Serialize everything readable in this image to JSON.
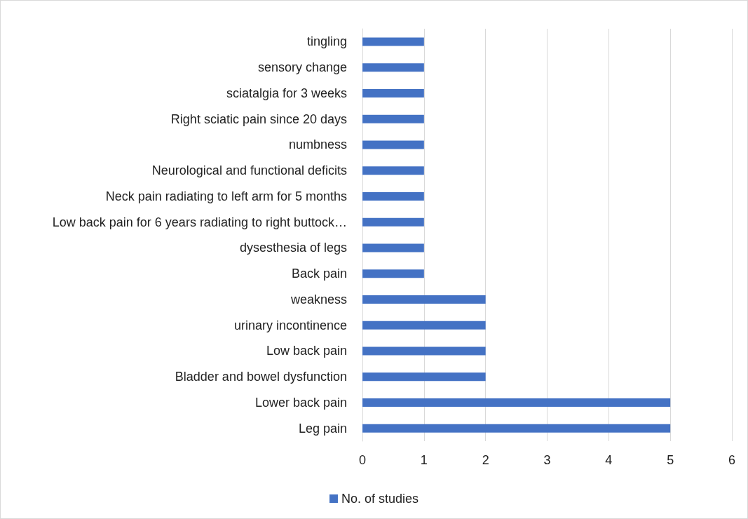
{
  "chart_data": {
    "type": "bar",
    "orientation": "horizontal",
    "categories": [
      "tingling",
      "sensory change",
      "sciatalgia for 3 weeks",
      "Right sciatic pain since 20 days",
      "numbness",
      "Neurological and functional deficits",
      "Neck pain radiating to left arm for 5 months",
      "Low back pain for 6 years radiating to right buttock…",
      "dysesthesia of legs",
      "Back pain",
      "weakness",
      "urinary incontinence",
      "Low back pain",
      "Bladder and bowel dysfunction",
      "Lower back pain",
      "Leg pain"
    ],
    "series": [
      {
        "name": "No. of studies",
        "color": "#4472c4",
        "values": [
          1,
          1,
          1,
          1,
          1,
          1,
          1,
          1,
          1,
          1,
          2,
          2,
          2,
          2,
          5,
          5
        ]
      }
    ],
    "xlim": [
      0,
      6
    ],
    "xticks": [
      0,
      1,
      2,
      3,
      4,
      5,
      6
    ],
    "grid": "x",
    "legend": "bottom"
  }
}
